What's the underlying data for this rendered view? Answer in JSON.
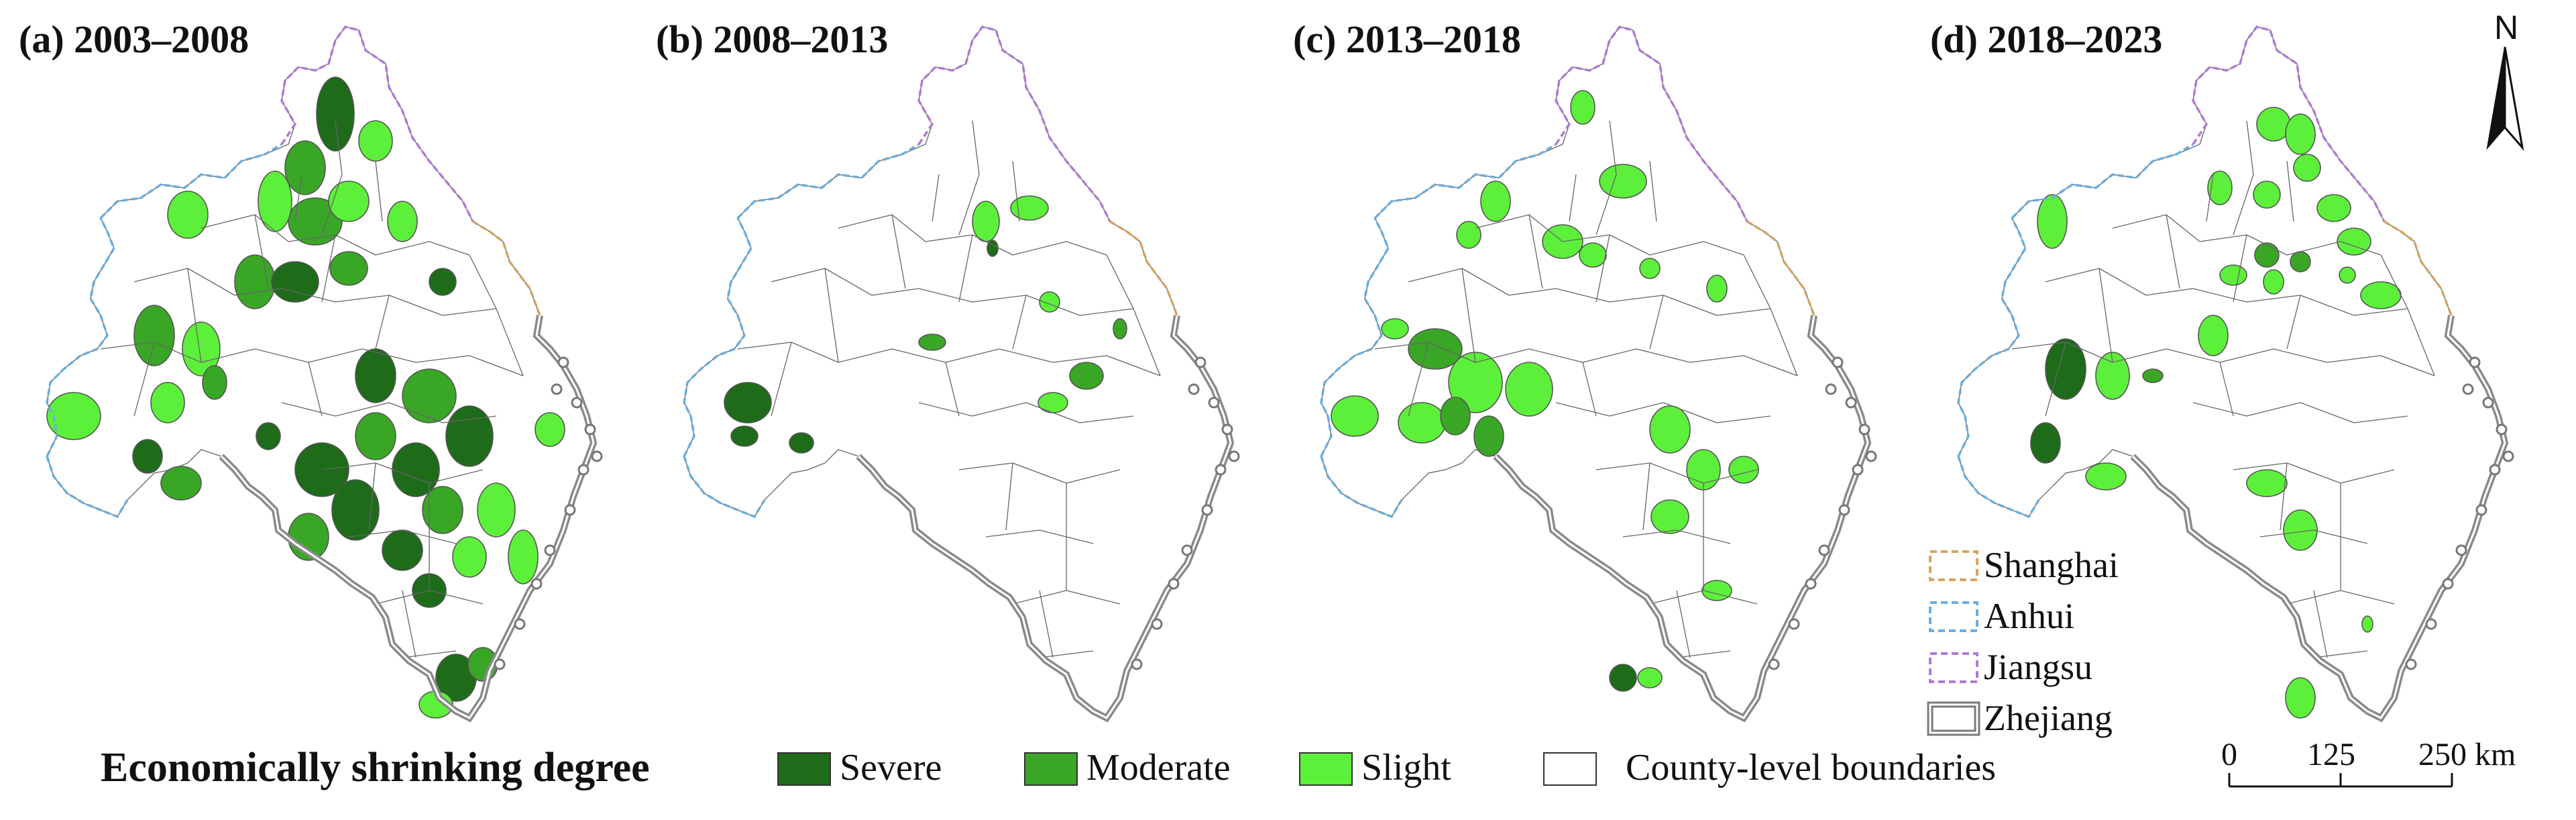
{
  "panels": [
    {
      "id": "a",
      "title": "(a) 2003–2008"
    },
    {
      "id": "b",
      "title": "(b) 2008–2013"
    },
    {
      "id": "c",
      "title": "(c) 2013–2018"
    },
    {
      "id": "d",
      "title": "(d) 2018–2023"
    }
  ],
  "legend": {
    "title": "Economically shrinking degree",
    "classes": [
      {
        "label": "Severe",
        "color": "#1e6b1a"
      },
      {
        "label": "Moderate",
        "color": "#3aa626"
      },
      {
        "label": "Slight",
        "color": "#5cf03a"
      }
    ],
    "county_label": "County-level boundaries"
  },
  "provinces": [
    {
      "label": "Shanghai",
      "color": "#d9a55a"
    },
    {
      "label": "Anhui",
      "color": "#6aaee0"
    },
    {
      "label": "Jiangsu",
      "color": "#b07ad6"
    },
    {
      "label": "Zhejiang",
      "color": "#7a7a7a"
    }
  ],
  "north_label": "N",
  "scale": {
    "ticks": [
      "0",
      "125",
      "250 km"
    ]
  },
  "colors": {
    "severe": "#1e6b1a",
    "moderate": "#3aa626",
    "slight": "#5cf03a",
    "none": "#ffffff"
  }
}
